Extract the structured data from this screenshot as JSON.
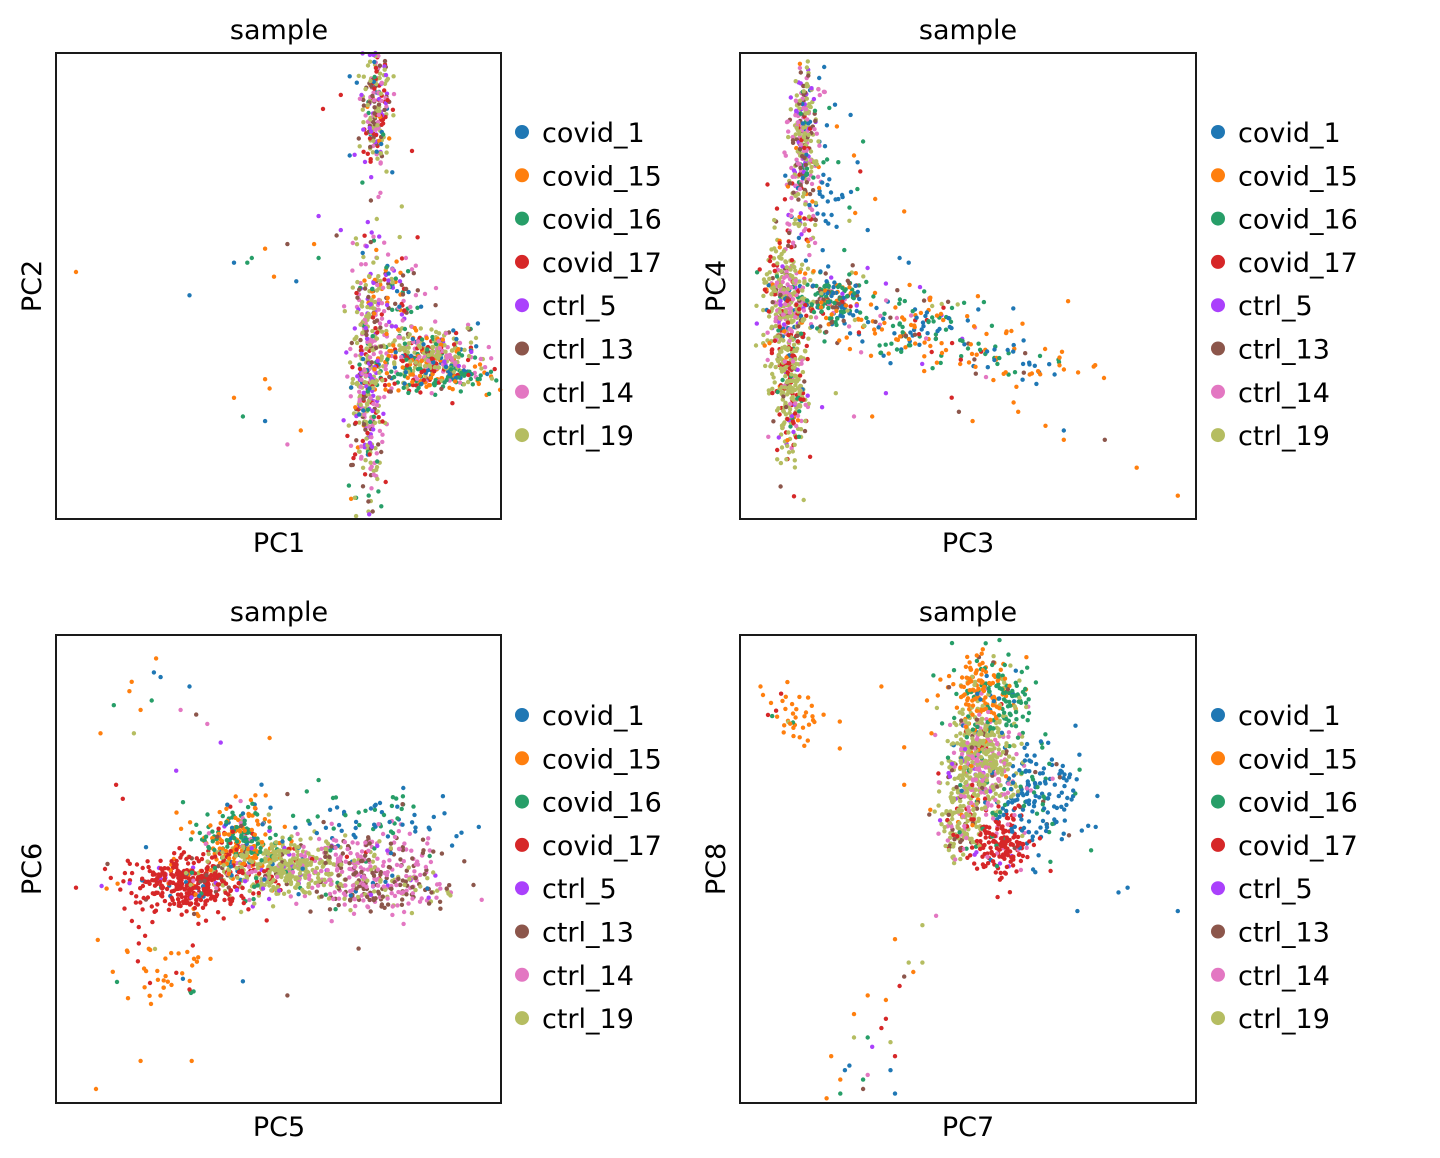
{
  "figure": {
    "legend_title": "",
    "legend_entries": [
      {
        "label": "covid_1",
        "color": "#1f77b4"
      },
      {
        "label": "covid_15",
        "color": "#ff7f0e"
      },
      {
        "label": "covid_16",
        "color": "#279e68"
      },
      {
        "label": "covid_17",
        "color": "#d62728"
      },
      {
        "label": "ctrl_5",
        "color": "#aa40fc"
      },
      {
        "label": "ctrl_13",
        "color": "#8c564b"
      },
      {
        "label": "ctrl_14",
        "color": "#e377c2"
      },
      {
        "label": "ctrl_19",
        "color": "#b5bd61"
      }
    ]
  },
  "chart_data": [
    {
      "type": "scatter",
      "title": "sample",
      "xlabel": "PC1",
      "ylabel": "PC2",
      "xlim": [
        0,
        100
      ],
      "ylim": [
        0,
        100
      ],
      "grid": false,
      "ticks": false,
      "legend": "right",
      "clusters": [
        {
          "cx": 72,
          "cy": 88,
          "sx": 1.6,
          "sy": 7,
          "n": 220,
          "mix": [
            0.04,
            0.03,
            0.05,
            0.14,
            0.14,
            0.12,
            0.18,
            0.3
          ]
        },
        {
          "cx": 70,
          "cy": 30,
          "sx": 1.8,
          "sy": 14,
          "n": 420,
          "mix": [
            0.03,
            0.04,
            0.05,
            0.06,
            0.1,
            0.14,
            0.24,
            0.34
          ]
        },
        {
          "cx": 84,
          "cy": 35,
          "sx": 6,
          "sy": 3,
          "n": 360,
          "mix": [
            0.06,
            0.1,
            0.12,
            0.12,
            0.02,
            0.04,
            0.16,
            0.38
          ]
        },
        {
          "cx": 85,
          "cy": 30,
          "sx": 7,
          "sy": 1.6,
          "n": 140,
          "mix": [
            0.14,
            0.3,
            0.34,
            0.16,
            0.0,
            0.02,
            0.02,
            0.02
          ]
        },
        {
          "cx": 76,
          "cy": 48,
          "sx": 3.5,
          "sy": 5,
          "n": 120,
          "mix": [
            0.1,
            0.12,
            0.12,
            0.1,
            0.14,
            0.1,
            0.22,
            0.1
          ]
        }
      ],
      "outliers": [
        {
          "x": 4.5,
          "y": 53,
          "s": 1
        },
        {
          "x": 30,
          "y": 48,
          "s": 0
        },
        {
          "x": 40,
          "y": 55,
          "s": 0
        },
        {
          "x": 43,
          "y": 55,
          "s": 2
        },
        {
          "x": 47,
          "y": 58,
          "s": 1
        },
        {
          "x": 52,
          "y": 59,
          "s": 5
        },
        {
          "x": 49,
          "y": 52,
          "s": 1
        },
        {
          "x": 58,
          "y": 59,
          "s": 1
        },
        {
          "x": 59,
          "y": 56,
          "s": 2
        },
        {
          "x": 54,
          "y": 51,
          "s": 0
        },
        {
          "x": 44,
          "y": 56,
          "s": 2
        },
        {
          "x": 47,
          "y": 30,
          "s": 1
        },
        {
          "x": 48,
          "y": 28,
          "s": 1
        },
        {
          "x": 40,
          "y": 26,
          "s": 1
        },
        {
          "x": 42,
          "y": 22,
          "s": 2
        },
        {
          "x": 47,
          "y": 21,
          "s": 0
        },
        {
          "x": 55,
          "y": 19,
          "s": 1
        },
        {
          "x": 52,
          "y": 16,
          "s": 6
        },
        {
          "x": 59,
          "y": 65,
          "s": 4
        },
        {
          "x": 64,
          "y": 62,
          "s": 4
        },
        {
          "x": 60,
          "y": 88,
          "s": 3
        },
        {
          "x": 64,
          "y": 91,
          "s": 3
        },
        {
          "x": 66,
          "y": 95,
          "s": 0
        },
        {
          "x": 80,
          "y": 79,
          "s": 3
        },
        {
          "x": 66,
          "y": 78,
          "s": 0
        },
        {
          "x": 93,
          "y": 31,
          "s": 0
        },
        {
          "x": 95,
          "y": 29,
          "s": 1
        }
      ]
    },
    {
      "type": "scatter",
      "title": "sample",
      "xlabel": "PC3",
      "ylabel": "PC4",
      "xlim": [
        0,
        100
      ],
      "ylim": [
        0,
        100
      ],
      "grid": false,
      "ticks": false,
      "legend": "right",
      "clusters": [
        {
          "cx": 14,
          "cy": 80,
          "sx": 1.6,
          "sy": 10,
          "n": 300,
          "mix": [
            0.04,
            0.02,
            0.04,
            0.04,
            0.08,
            0.14,
            0.28,
            0.36
          ]
        },
        {
          "cx": 10,
          "cy": 47,
          "sx": 2.6,
          "sy": 8,
          "n": 380,
          "mix": [
            0.02,
            0.02,
            0.02,
            0.16,
            0.04,
            0.06,
            0.2,
            0.48
          ]
        },
        {
          "cx": 11,
          "cy": 28,
          "sx": 1.8,
          "sy": 7,
          "n": 260,
          "mix": [
            0.02,
            0.02,
            0.02,
            0.18,
            0.04,
            0.04,
            0.1,
            0.58
          ]
        },
        {
          "cx": 20,
          "cy": 47,
          "sx": 4,
          "sy": 3,
          "n": 200,
          "mix": [
            0.2,
            0.14,
            0.3,
            0.02,
            0.04,
            0.22,
            0.06,
            0.02
          ]
        },
        {
          "cx": 38,
          "cy": 41,
          "sx": 10,
          "sy": 4,
          "n": 170,
          "mix": [
            0.26,
            0.24,
            0.34,
            0.04,
            0.02,
            0.04,
            0.04,
            0.02
          ]
        },
        {
          "cx": 58,
          "cy": 34,
          "sx": 9,
          "sy": 3,
          "n": 70,
          "mix": [
            0.24,
            0.46,
            0.22,
            0.02,
            0.0,
            0.04,
            0.02,
            0.0
          ]
        },
        {
          "cx": 18,
          "cy": 73,
          "sx": 4,
          "sy": 8,
          "n": 60,
          "mix": [
            0.6,
            0.08,
            0.22,
            0.02,
            0.02,
            0.04,
            0.0,
            0.02
          ]
        }
      ],
      "outliers": [
        {
          "x": 96,
          "y": 5,
          "s": 1
        },
        {
          "x": 87,
          "y": 11,
          "s": 1
        },
        {
          "x": 80,
          "y": 17,
          "s": 5
        },
        {
          "x": 71,
          "y": 17,
          "s": 1
        },
        {
          "x": 71,
          "y": 19,
          "s": 0
        },
        {
          "x": 67,
          "y": 20,
          "s": 1
        },
        {
          "x": 61,
          "y": 23,
          "s": 1
        },
        {
          "x": 51,
          "y": 21,
          "s": 1
        },
        {
          "x": 65,
          "y": 29,
          "s": 0
        },
        {
          "x": 69,
          "y": 31,
          "s": 0
        },
        {
          "x": 60,
          "y": 25,
          "s": 1
        },
        {
          "x": 48,
          "y": 23,
          "s": 5
        },
        {
          "x": 36,
          "y": 66,
          "s": 1
        },
        {
          "x": 27,
          "y": 81,
          "s": 2
        },
        {
          "x": 25,
          "y": 78,
          "s": 1
        },
        {
          "x": 28,
          "y": 62,
          "s": 0
        },
        {
          "x": 35,
          "y": 56,
          "s": 0
        },
        {
          "x": 37,
          "y": 55,
          "s": 0
        },
        {
          "x": 24,
          "y": 64,
          "s": 7
        },
        {
          "x": 18,
          "y": 24,
          "s": 4
        },
        {
          "x": 25,
          "y": 22,
          "s": 6
        },
        {
          "x": 21,
          "y": 27,
          "s": 7
        },
        {
          "x": 29,
          "y": 22,
          "s": 1
        },
        {
          "x": 32,
          "y": 27,
          "s": 4
        }
      ]
    },
    {
      "type": "scatter",
      "title": "sample",
      "xlabel": "PC5",
      "ylabel": "PC6",
      "xlim": [
        0,
        100
      ],
      "ylim": [
        0,
        100
      ],
      "grid": false,
      "ticks": false,
      "legend": "right",
      "clusters": [
        {
          "cx": 31,
          "cy": 47,
          "sx": 7,
          "sy": 3.2,
          "n": 420,
          "mix": [
            0.02,
            0.04,
            0.02,
            0.82,
            0.04,
            0.02,
            0.02,
            0.02
          ]
        },
        {
          "cx": 41,
          "cy": 57,
          "sx": 5,
          "sy": 3.6,
          "n": 260,
          "mix": [
            0.06,
            0.44,
            0.32,
            0.08,
            0.02,
            0.02,
            0.04,
            0.02
          ]
        },
        {
          "cx": 51,
          "cy": 50,
          "sx": 7,
          "sy": 3,
          "n": 420,
          "mix": [
            0.02,
            0.01,
            0.02,
            0.02,
            0.06,
            0.04,
            0.08,
            0.75
          ]
        },
        {
          "cx": 70,
          "cy": 50,
          "sx": 8,
          "sy": 4,
          "n": 280,
          "mix": [
            0.02,
            0.01,
            0.02,
            0.01,
            0.04,
            0.3,
            0.52,
            0.08
          ]
        },
        {
          "cx": 76,
          "cy": 45,
          "sx": 7,
          "sy": 2,
          "n": 120,
          "mix": [
            0.01,
            0.0,
            0.0,
            0.0,
            0.04,
            0.44,
            0.3,
            0.21
          ]
        },
        {
          "cx": 72,
          "cy": 61,
          "sx": 10,
          "sy": 3,
          "n": 70,
          "mix": [
            0.54,
            0.0,
            0.4,
            0.0,
            0.0,
            0.02,
            0.04,
            0.0
          ]
        },
        {
          "cx": 25,
          "cy": 28,
          "sx": 6,
          "sy": 5,
          "n": 45,
          "mix": [
            0.04,
            0.76,
            0.06,
            0.12,
            0.0,
            0.0,
            0.0,
            0.02
          ]
        }
      ],
      "outliers": [
        {
          "x": 22.5,
          "y": 95,
          "s": 1
        },
        {
          "x": 23.5,
          "y": 91,
          "s": 0
        },
        {
          "x": 22,
          "y": 92,
          "s": 0
        },
        {
          "x": 17,
          "y": 90,
          "s": 1
        },
        {
          "x": 16.5,
          "y": 88,
          "s": 1
        },
        {
          "x": 30,
          "y": 89,
          "s": 0
        },
        {
          "x": 13,
          "y": 85,
          "s": 2
        },
        {
          "x": 19,
          "y": 84,
          "s": 1
        },
        {
          "x": 21.5,
          "y": 86,
          "s": 2
        },
        {
          "x": 10,
          "y": 79,
          "s": 1
        },
        {
          "x": 17.5,
          "y": 79,
          "s": 7
        },
        {
          "x": 28,
          "y": 84,
          "s": 6
        },
        {
          "x": 31.5,
          "y": 83,
          "s": 5
        },
        {
          "x": 34,
          "y": 81,
          "s": 6
        },
        {
          "x": 37,
          "y": 77,
          "s": 4
        },
        {
          "x": 48,
          "y": 78,
          "s": 1
        },
        {
          "x": 52,
          "y": 66,
          "s": 5
        },
        {
          "x": 13.5,
          "y": 68,
          "s": 3
        },
        {
          "x": 15,
          "y": 65,
          "s": 3
        },
        {
          "x": 11,
          "y": 50,
          "s": 3
        },
        {
          "x": 4.5,
          "y": 46,
          "s": 3
        },
        {
          "x": 19,
          "y": 9,
          "s": 1
        },
        {
          "x": 30.5,
          "y": 9,
          "s": 1
        },
        {
          "x": 9,
          "y": 3,
          "s": 1
        },
        {
          "x": 52,
          "y": 23,
          "s": 5
        },
        {
          "x": 68,
          "y": 33,
          "s": 5
        },
        {
          "x": 95,
          "y": 59,
          "s": 0
        },
        {
          "x": 90,
          "y": 57,
          "s": 0
        },
        {
          "x": 89,
          "y": 55,
          "s": 0
        },
        {
          "x": 27,
          "y": 71,
          "s": 4
        },
        {
          "x": 42,
          "y": 26,
          "s": 0
        },
        {
          "x": 59,
          "y": 69,
          "s": 2
        }
      ]
    },
    {
      "type": "scatter",
      "title": "sample",
      "xlabel": "PC7",
      "ylabel": "PC8",
      "xlim": [
        0,
        100
      ],
      "ylim": [
        0,
        100
      ],
      "grid": false,
      "ticks": false,
      "legend": "right",
      "clusters": [
        {
          "cx": 53,
          "cy": 73,
          "sx": 3.6,
          "sy": 6,
          "n": 520,
          "mix": [
            0.02,
            0.02,
            0.02,
            0.02,
            0.02,
            0.04,
            0.22,
            0.64
          ]
        },
        {
          "cx": 53,
          "cy": 89,
          "sx": 3.4,
          "sy": 4,
          "n": 160,
          "mix": [
            0.02,
            0.7,
            0.2,
            0.0,
            0.0,
            0.02,
            0.0,
            0.06
          ]
        },
        {
          "cx": 59,
          "cy": 86,
          "sx": 3,
          "sy": 4,
          "n": 80,
          "mix": [
            0.08,
            0.08,
            0.78,
            0.0,
            0.0,
            0.04,
            0.0,
            0.02
          ]
        },
        {
          "cx": 57,
          "cy": 56,
          "sx": 3.4,
          "sy": 4,
          "n": 200,
          "mix": [
            0.02,
            0.0,
            0.02,
            0.76,
            0.06,
            0.02,
            0.08,
            0.04
          ]
        },
        {
          "cx": 65,
          "cy": 66,
          "sx": 5,
          "sy": 6,
          "n": 170,
          "mix": [
            0.78,
            0.0,
            0.14,
            0.02,
            0.0,
            0.04,
            0.02,
            0.0
          ]
        },
        {
          "cx": 47,
          "cy": 60,
          "sx": 2.4,
          "sy": 4,
          "n": 120,
          "mix": [
            0.01,
            0.02,
            0.02,
            0.04,
            0.04,
            0.15,
            0.12,
            0.6
          ]
        },
        {
          "cx": 12,
          "cy": 83,
          "sx": 5,
          "sy": 3,
          "n": 40,
          "mix": [
            0.0,
            0.84,
            0.06,
            0.08,
            0.0,
            0.0,
            0.0,
            0.02
          ]
        }
      ],
      "outliers": [
        {
          "x": 4.5,
          "y": 89,
          "s": 1
        },
        {
          "x": 31,
          "y": 89,
          "s": 1
        },
        {
          "x": 36,
          "y": 76,
          "s": 1
        },
        {
          "x": 41,
          "y": 86,
          "s": 1
        },
        {
          "x": 42,
          "y": 79,
          "s": 1
        },
        {
          "x": 36,
          "y": 68,
          "s": 1
        },
        {
          "x": 96,
          "y": 41,
          "s": 0
        },
        {
          "x": 85,
          "y": 46,
          "s": 0
        },
        {
          "x": 83,
          "y": 45,
          "s": 0
        },
        {
          "x": 77,
          "y": 54,
          "s": 2
        },
        {
          "x": 78,
          "y": 59,
          "s": 0
        },
        {
          "x": 74,
          "y": 41,
          "s": 0
        },
        {
          "x": 34,
          "y": 35,
          "s": 1
        },
        {
          "x": 37,
          "y": 30,
          "s": 7
        },
        {
          "x": 40,
          "y": 30,
          "s": 7
        },
        {
          "x": 38,
          "y": 28,
          "s": 1
        },
        {
          "x": 36,
          "y": 27,
          "s": 5
        },
        {
          "x": 35,
          "y": 25,
          "s": 3
        },
        {
          "x": 28,
          "y": 23,
          "s": 1
        },
        {
          "x": 32,
          "y": 22,
          "s": 1
        },
        {
          "x": 25,
          "y": 19,
          "s": 1
        },
        {
          "x": 32,
          "y": 18,
          "s": 3
        },
        {
          "x": 31,
          "y": 16,
          "s": 3
        },
        {
          "x": 28,
          "y": 14,
          "s": 2
        },
        {
          "x": 25,
          "y": 14,
          "s": 7
        },
        {
          "x": 29,
          "y": 12,
          "s": 4
        },
        {
          "x": 33,
          "y": 13,
          "s": 7
        },
        {
          "x": 34,
          "y": 10,
          "s": 3
        },
        {
          "x": 20,
          "y": 10,
          "s": 1
        },
        {
          "x": 23,
          "y": 7,
          "s": 0
        },
        {
          "x": 22,
          "y": 5,
          "s": 1
        },
        {
          "x": 27,
          "y": 5,
          "s": 2
        },
        {
          "x": 33,
          "y": 7,
          "s": 0
        },
        {
          "x": 27,
          "y": 3,
          "s": 5
        },
        {
          "x": 22,
          "y": 2,
          "s": 2
        },
        {
          "x": 34,
          "y": 2,
          "s": 0
        },
        {
          "x": 19,
          "y": 1,
          "s": 1
        },
        {
          "x": 24,
          "y": 8,
          "s": 0
        },
        {
          "x": 28,
          "y": 6,
          "s": 6
        },
        {
          "x": 43,
          "y": 40,
          "s": 6
        },
        {
          "x": 40,
          "y": 38,
          "s": 7
        }
      ]
    }
  ]
}
